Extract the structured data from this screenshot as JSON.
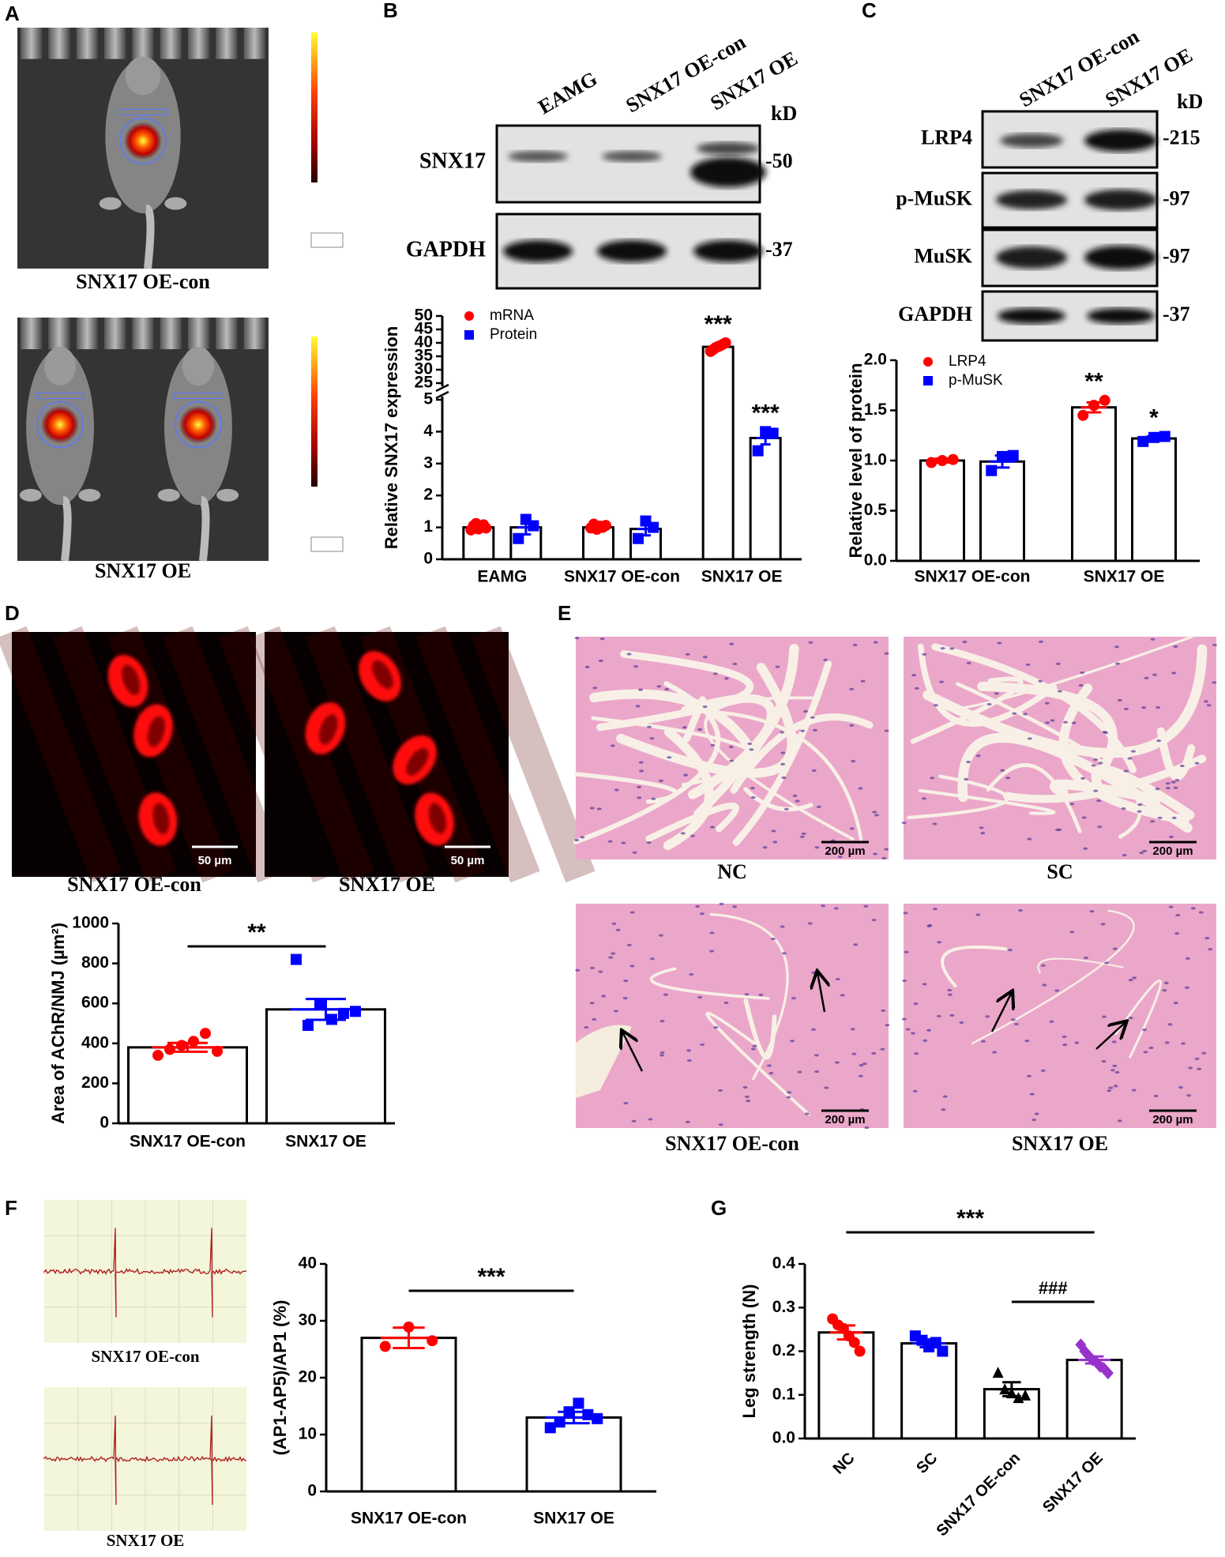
{
  "panel_labels": [
    "A",
    "B",
    "C",
    "D",
    "E",
    "F",
    "G"
  ],
  "imaging": {
    "captions": [
      "SNX17 OE-con",
      "SNX17 OE"
    ]
  },
  "blot_b": {
    "lanes": [
      "EAMG",
      "SNX17 OE-con",
      "SNX17 OE"
    ],
    "unit": "kD",
    "rows": [
      {
        "label": "SNX17",
        "size": "-50"
      },
      {
        "label": "GAPDH",
        "size": "-37"
      }
    ]
  },
  "blot_c": {
    "lanes": [
      "SNX17 OE-con",
      "SNX17 OE"
    ],
    "unit": "kD",
    "rows": [
      {
        "label": "LRP4",
        "size": "-215"
      },
      {
        "label": "p-MuSK",
        "size": "-97"
      },
      {
        "label": "MuSK",
        "size": "-97"
      },
      {
        "label": "GAPDH",
        "size": "-37"
      }
    ]
  },
  "confocal": {
    "captions": [
      "SNX17 OE-con",
      "SNX17 OE"
    ],
    "scale_bar": "50 µm"
  },
  "histology": {
    "captions": [
      "NC",
      "SC",
      "SNX17 OE-con",
      "SNX17 OE"
    ],
    "scale_bar": "200 µm"
  },
  "traces": {
    "captions": [
      "SNX17 OE-con",
      "SNX17 OE"
    ]
  },
  "chart_data": [
    {
      "type": "bar",
      "ylabel": "Relative SNX17 expression",
      "categories": [
        "EAMG",
        "SNX17 OE-con",
        "SNX17 OE"
      ],
      "series": [
        {
          "name": "mRNA",
          "color": "#ff0000",
          "marker": "circle",
          "values": [
            1.0,
            1.0,
            38.5
          ],
          "errors": [
            0.04,
            0.03,
            0.5
          ],
          "points": [
            [
              0.92,
              1.05,
              1.12,
              0.95,
              1.0,
              1.08,
              0.98
            ],
            [
              0.98,
              1.1,
              0.94,
              1.04,
              1.0,
              1.06
            ],
            [
              36.8,
              37.5,
              38.2,
              38.6,
              39.0,
              39.5,
              40.0
            ]
          ],
          "significance": [
            null,
            null,
            "***"
          ]
        },
        {
          "name": "Protein",
          "color": "#0000ff",
          "marker": "square",
          "values": [
            1.0,
            0.95,
            3.8
          ],
          "errors": [
            0.22,
            0.2,
            0.2
          ],
          "points": [
            [
              0.65,
              1.25,
              1.05
            ],
            [
              0.65,
              1.2,
              1.0
            ],
            [
              3.4,
              4.0,
              3.95
            ]
          ],
          "significance": [
            null,
            null,
            "***"
          ]
        }
      ],
      "ylim": [
        0,
        50
      ],
      "ybreak": [
        5,
        25
      ],
      "yticks": [
        0,
        1,
        2,
        3,
        4,
        5,
        25,
        30,
        35,
        40,
        45,
        50
      ]
    },
    {
      "type": "bar",
      "ylabel": "Relative level of protein",
      "categories": [
        "SNX17 OE-con",
        "SNX17 OE"
      ],
      "series": [
        {
          "name": "LRP4",
          "color": "#ff0000",
          "marker": "circle",
          "values": [
            1.0,
            1.53
          ],
          "errors": [
            0.02,
            0.05
          ],
          "points": [
            [
              0.98,
              1.0,
              1.01
            ],
            [
              1.45,
              1.55,
              1.6
            ]
          ],
          "significance": [
            null,
            "**"
          ]
        },
        {
          "name": "p-MuSK",
          "color": "#0000ff",
          "marker": "square",
          "values": [
            0.99,
            1.22
          ],
          "errors": [
            0.06,
            0.02
          ],
          "points": [
            [
              0.9,
              1.04,
              1.05
            ],
            [
              1.19,
              1.23,
              1.24
            ]
          ],
          "significance": [
            null,
            "*"
          ]
        }
      ],
      "ylim": [
        0,
        2
      ],
      "yticks": [
        {
          "value": 0,
          "label": "0.0"
        },
        0.5,
        {
          "value": 1,
          "label": "1.0"
        },
        1.5,
        {
          "value": 2,
          "label": "2.0"
        }
      ]
    },
    {
      "type": "bar",
      "ylabel": "Area of AChR/NMJ (µm²)",
      "categories": [
        "SNX17 OE-con",
        "SNX17 OE"
      ],
      "values": [
        380,
        570
      ],
      "errors": [
        22,
        52
      ],
      "colors": [
        "#ff0000",
        "#0000ff"
      ],
      "markers": [
        "circle",
        "square"
      ],
      "points": [
        [
          340,
          370,
          390,
          410,
          450,
          360
        ],
        [
          820,
          490,
          600,
          520,
          550,
          560
        ]
      ],
      "brackets": [
        {
          "span": [
            0,
            1
          ],
          "label": "**"
        }
      ],
      "ylim": [
        0,
        1000
      ],
      "yticks": [
        0,
        200,
        400,
        600,
        800,
        1000
      ]
    },
    {
      "type": "bar",
      "ylabel": "(AP1-AP5)/AP1 (%)",
      "categories": [
        "SNX17 OE-con",
        "SNX17 OE"
      ],
      "values": [
        27,
        13
      ],
      "errors": [
        1.8,
        1.0
      ],
      "colors": [
        "#ff0000",
        "#0000ff"
      ],
      "markers": [
        "circle",
        "square"
      ],
      "points": [
        [
          25.5,
          28.9,
          26.5
        ],
        [
          11.2,
          12.2,
          14.0,
          15.5,
          13.5,
          12.8
        ]
      ],
      "brackets": [
        {
          "span": [
            0,
            1
          ],
          "label": "***"
        }
      ],
      "ylim": [
        0,
        40
      ],
      "yticks": [
        0,
        10,
        20,
        30,
        40
      ]
    },
    {
      "type": "bar",
      "ylabel": "Leg strength (N)",
      "categories": [
        "NC",
        "SC",
        "SNX17 OE-con",
        "SNX17 OE"
      ],
      "values": [
        0.243,
        0.218,
        0.113,
        0.18
      ],
      "errors": [
        0.016,
        0.009,
        0.016,
        0.008
      ],
      "colors": [
        "#ff0000",
        "#0000ff",
        "#000000",
        "#9932cc"
      ],
      "markers": [
        "circle",
        "square",
        "triangle",
        "diamond"
      ],
      "points": [
        [
          0.274,
          0.26,
          0.252,
          0.235,
          0.22,
          0.2
        ],
        [
          0.235,
          0.225,
          0.21,
          0.22,
          0.2
        ],
        [
          0.15,
          0.112,
          0.103,
          0.092,
          0.098
        ],
        [
          0.215,
          0.2,
          0.19,
          0.18,
          0.175,
          0.165,
          0.16,
          0.15
        ]
      ],
      "brackets": [
        {
          "span": [
            0,
            3
          ],
          "label": "***"
        },
        {
          "span": [
            2,
            3
          ],
          "label": "###"
        }
      ],
      "ylim": [
        0,
        0.4
      ],
      "yticks": [
        {
          "value": 0,
          "label": "0.0"
        },
        0.1,
        0.2,
        0.3,
        0.4
      ]
    }
  ]
}
